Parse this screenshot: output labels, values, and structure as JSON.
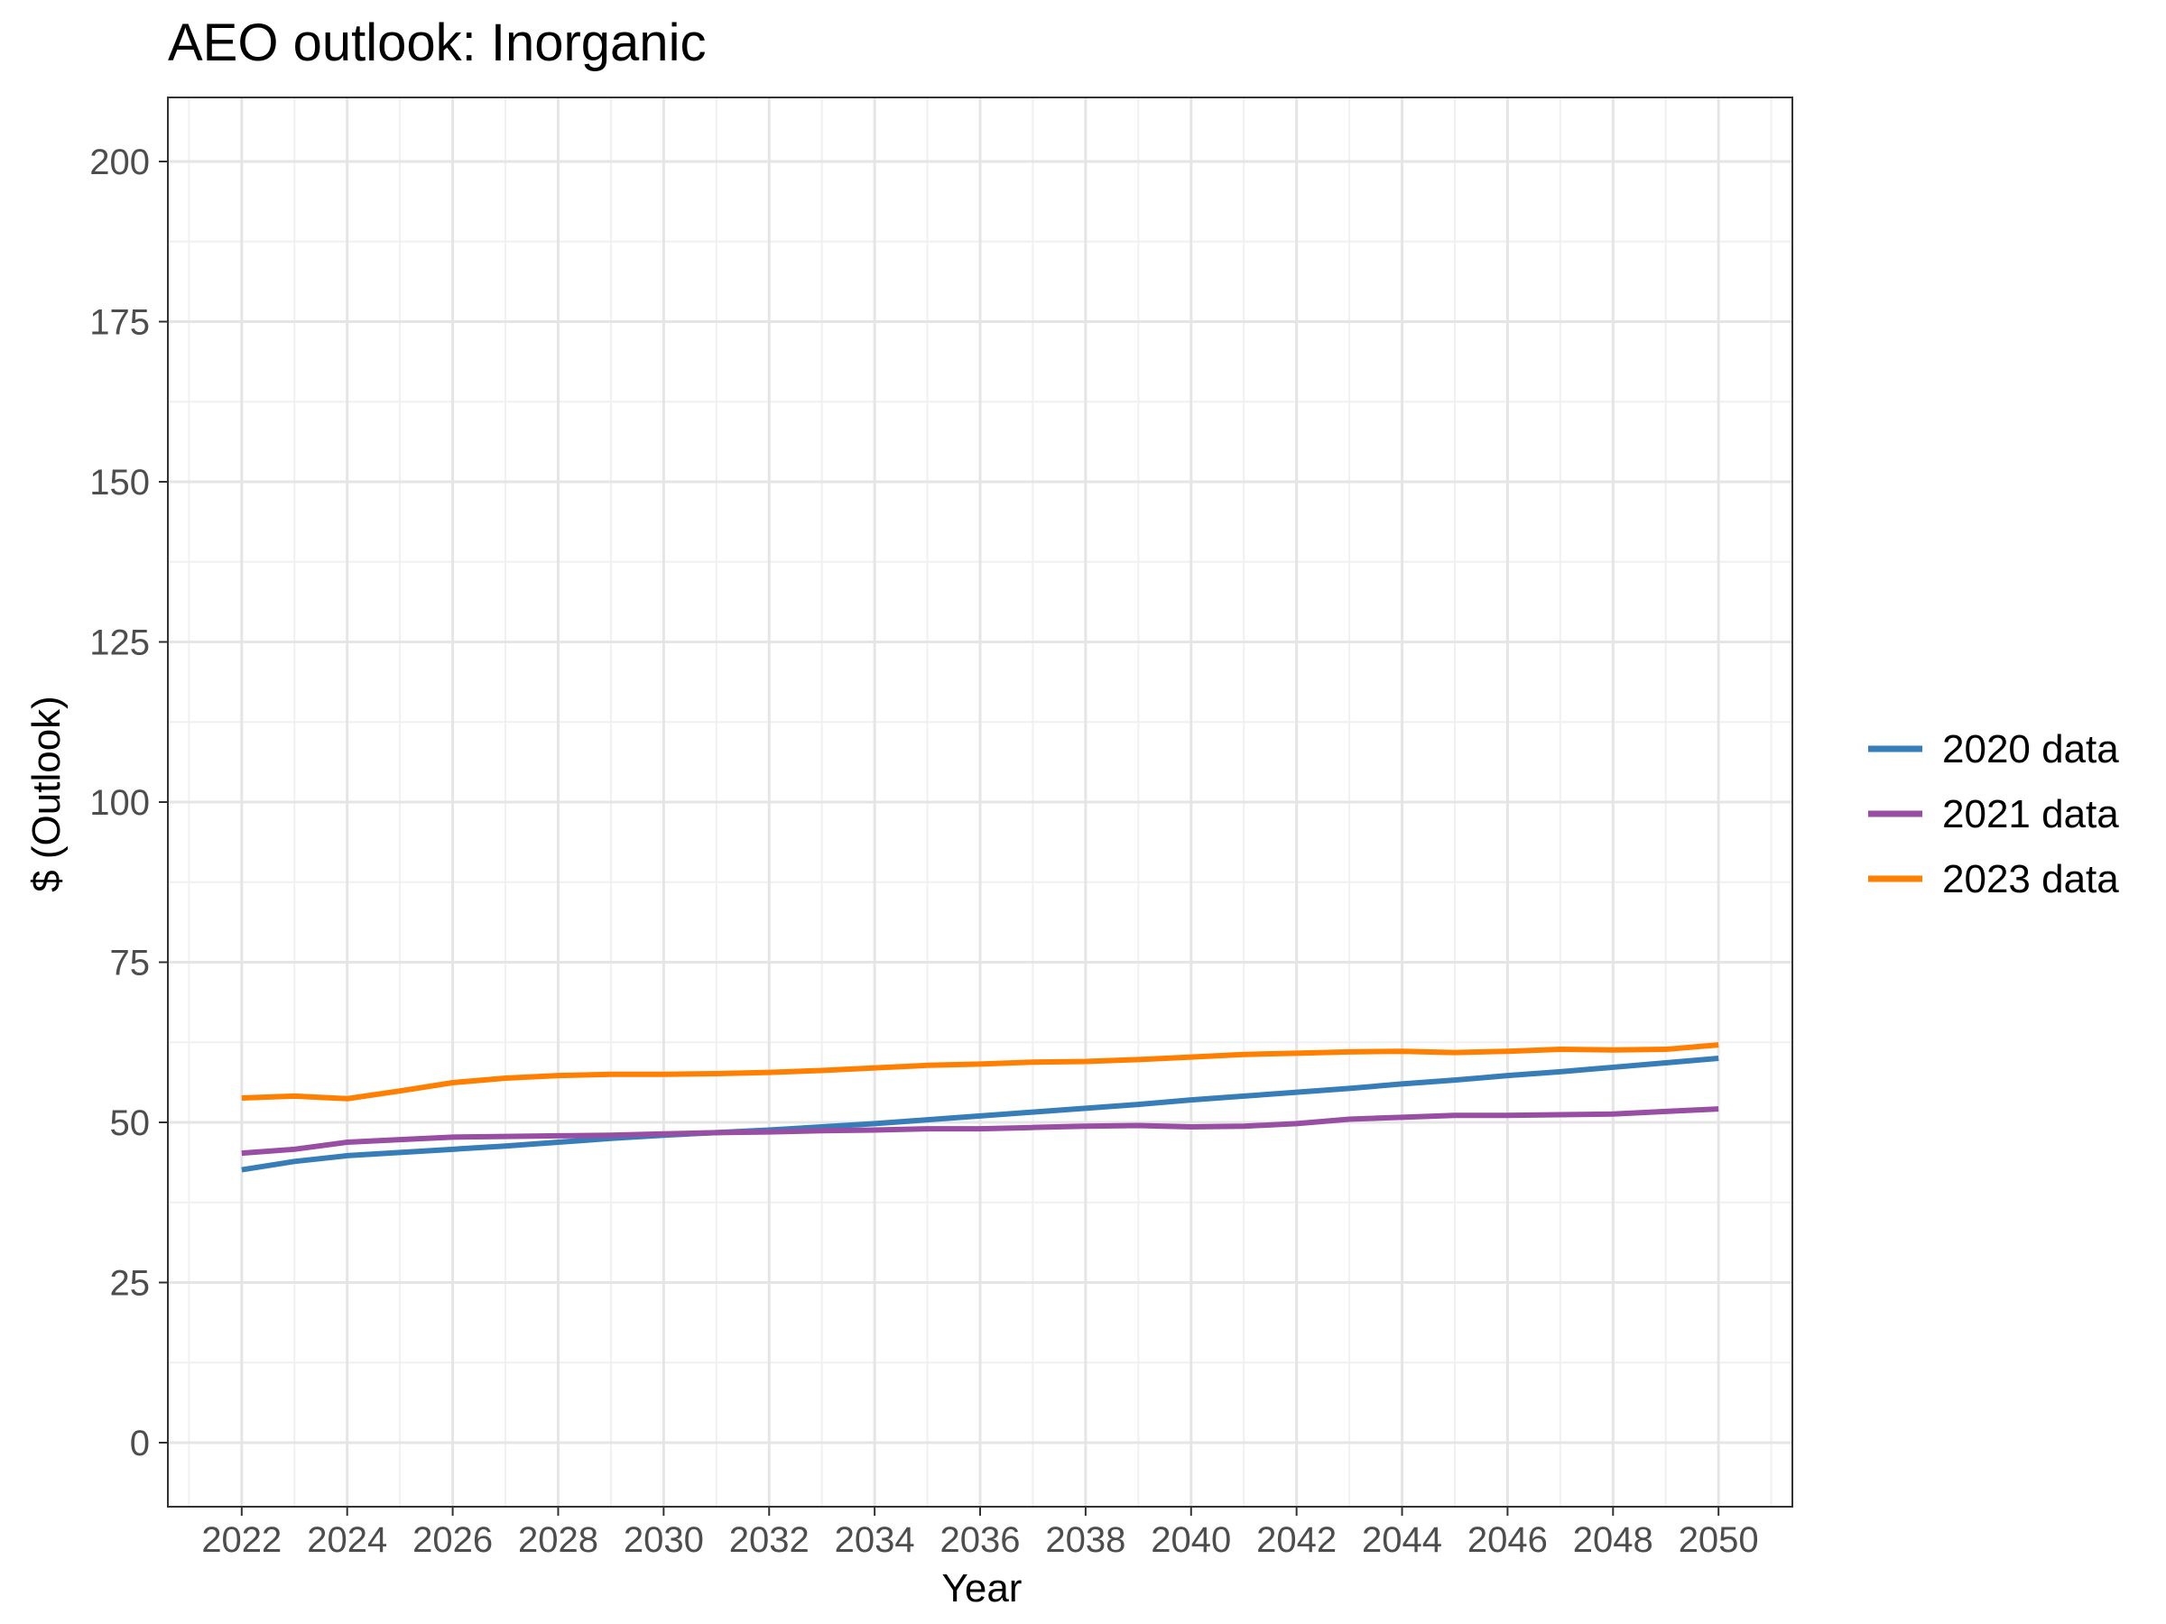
{
  "chart_data": {
    "type": "line",
    "title": "AEO outlook: Inorganic",
    "xlabel": "Year",
    "ylabel": "$ (Outlook)",
    "xlim": [
      2020.6,
      2051.4
    ],
    "ylim": [
      -10,
      210
    ],
    "x_ticks": [
      2022,
      2024,
      2026,
      2028,
      2030,
      2032,
      2034,
      2036,
      2038,
      2040,
      2042,
      2044,
      2046,
      2048,
      2050
    ],
    "x_tick_labels": [
      "2022",
      "2024",
      "2026",
      "2028",
      "2030",
      "2032",
      "2034",
      "2036",
      "2038",
      "2040",
      "2042",
      "2044",
      "2046",
      "2048",
      "2050"
    ],
    "y_ticks": [
      0,
      25,
      50,
      75,
      100,
      125,
      150,
      175,
      200
    ],
    "y_tick_labels": [
      "0",
      "25",
      "50",
      "75",
      "100",
      "125",
      "150",
      "175",
      "200"
    ],
    "grid": true,
    "legend_position": "right",
    "x": [
      2022,
      2023,
      2024,
      2025,
      2026,
      2027,
      2028,
      2029,
      2030,
      2031,
      2032,
      2033,
      2034,
      2035,
      2036,
      2037,
      2038,
      2039,
      2040,
      2041,
      2042,
      2043,
      2044,
      2045,
      2046,
      2047,
      2048,
      2049,
      2050
    ],
    "series": [
      {
        "name": "2020 data",
        "color": "#377eb8",
        "values": [
          42.6,
          43.9,
          44.8,
          45.3,
          45.8,
          46.3,
          46.9,
          47.5,
          48.0,
          48.4,
          48.8,
          49.3,
          49.8,
          50.4,
          51.0,
          51.6,
          52.2,
          52.8,
          53.5,
          54.1,
          54.7,
          55.3,
          56.0,
          56.6,
          57.3,
          57.9,
          58.6,
          59.3,
          60.0
        ]
      },
      {
        "name": "2021 data",
        "color": "#984ea3",
        "values": [
          45.2,
          45.8,
          46.9,
          47.3,
          47.7,
          47.8,
          47.9,
          48.0,
          48.2,
          48.4,
          48.5,
          48.7,
          48.8,
          49.0,
          49.0,
          49.2,
          49.4,
          49.5,
          49.3,
          49.4,
          49.8,
          50.5,
          50.8,
          51.1,
          51.1,
          51.2,
          51.3,
          51.7,
          52.1
        ]
      },
      {
        "name": "2023 data",
        "color": "#ff7f00",
        "values": [
          53.8,
          54.1,
          53.7,
          54.9,
          56.2,
          56.9,
          57.3,
          57.5,
          57.5,
          57.6,
          57.8,
          58.1,
          58.5,
          58.9,
          59.1,
          59.4,
          59.5,
          59.8,
          60.2,
          60.6,
          60.8,
          61.0,
          61.1,
          60.9,
          61.1,
          61.4,
          61.3,
          61.4,
          62.1
        ]
      }
    ]
  }
}
